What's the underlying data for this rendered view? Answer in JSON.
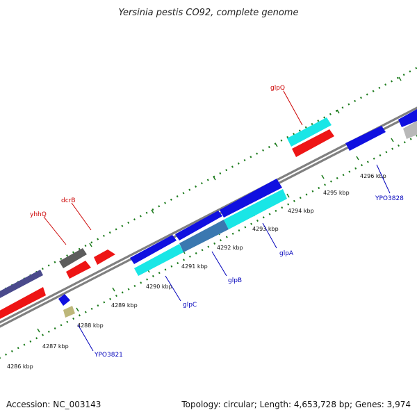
{
  "title": "Yersinia pestis CO92, complete genome",
  "footer": {
    "accession": "Accession: NC_003143",
    "stats": "Topology: circular; Length: 4,653,728 bp; Genes: 3,974"
  },
  "colors": {
    "backbone": "#808080",
    "ticks": "#1a7a1a",
    "forward_label": "#cc0000",
    "reverse_label": "#0000bb",
    "blue": "#1010e0",
    "cyan": "#19e6e6",
    "red": "#ee1515",
    "dark_gray": "#5c5c5c",
    "slate": "#4a4a8c",
    "steel": "#3a78b0",
    "khaki": "#bdb77a",
    "light_gray": "#b8b8b8"
  },
  "ticks": [
    "4286 kbp",
    "4287 kbp",
    "4288 kbp",
    "4289 kbp",
    "4290 kbp",
    "4291 kbp",
    "4292 kbp",
    "4293 kbp",
    "4294 kbp",
    "4295 kbp",
    "4296 kbp"
  ],
  "gene_labels": {
    "yhhQ": "yhhQ",
    "dcrB": "dcrB",
    "glpQ": "glpQ",
    "glpC": "glpC",
    "glpB": "glpB",
    "glpA": "glpA",
    "YPO3821": "YPO3821",
    "YPO3828": "YPO3828"
  }
}
